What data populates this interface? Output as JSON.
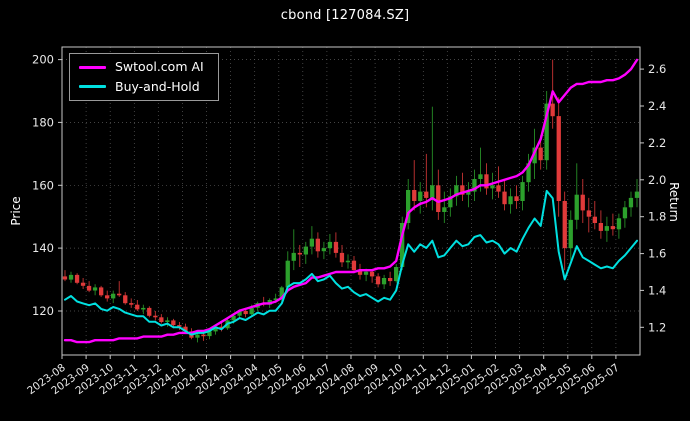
{
  "chart_data": {
    "type": "candlestick+line",
    "title": "cbond [127084.SZ]",
    "xlabel": "",
    "ylabel": "Price",
    "y2label": "Return",
    "ylim": [
      106,
      204
    ],
    "y2lim": [
      1.05,
      2.72
    ],
    "price_ticks": [
      120,
      140,
      160,
      180,
      200
    ],
    "return_ticks": [
      1.2,
      1.4,
      1.6,
      1.8,
      2.0,
      2.2,
      2.4,
      2.6
    ],
    "categories": [
      "2023-08",
      "2023-09",
      "2023-10",
      "2023-11",
      "2023-12",
      "2024-01",
      "2024-02",
      "2024-03",
      "2024-04",
      "2024-05",
      "2024-06",
      "2024-07",
      "2024-08",
      "2024-09",
      "2024-10",
      "2024-11",
      "2024-12",
      "2025-01",
      "2025-02",
      "2025-03",
      "2025-04",
      "2025-05",
      "2025-06",
      "2025-07"
    ],
    "candles_per_month": 4,
    "grid": true,
    "legend_position": "upper-left",
    "candles": [
      [
        131,
        133,
        129.5,
        130
      ],
      [
        130,
        132.5,
        129,
        131.5
      ],
      [
        131.5,
        132,
        128.5,
        129
      ],
      [
        129,
        130.5,
        127,
        128
      ],
      [
        128,
        129.5,
        126,
        126.5
      ],
      [
        126.5,
        128.5,
        125,
        127.5
      ],
      [
        127.5,
        128,
        124.5,
        125
      ],
      [
        125,
        126.5,
        123,
        124
      ],
      [
        124,
        126.5,
        122.5,
        125.5
      ],
      [
        125.5,
        129.5,
        124.5,
        125
      ],
      [
        125,
        126,
        122,
        122.5
      ],
      [
        122.5,
        124,
        121,
        122
      ],
      [
        122,
        123.5,
        120,
        120.5
      ],
      [
        120.5,
        122,
        119,
        121
      ],
      [
        121,
        121.5,
        118,
        118.5
      ],
      [
        118.5,
        120,
        117,
        118
      ],
      [
        118,
        119,
        116,
        116.5
      ],
      [
        116.5,
        118,
        115,
        117
      ],
      [
        117,
        117.5,
        114.5,
        115.5
      ],
      [
        115.5,
        116.5,
        114,
        115
      ],
      [
        115,
        116,
        113,
        113.5
      ],
      [
        113.5,
        114.5,
        111,
        111.5
      ],
      [
        111.5,
        113,
        110,
        112.5
      ],
      [
        112.5,
        113.5,
        110.5,
        112
      ],
      [
        112,
        114,
        111,
        113.5
      ],
      [
        113.5,
        115.5,
        112.5,
        115
      ],
      [
        115,
        116.5,
        113.5,
        114.5
      ],
      [
        114.5,
        117.5,
        114,
        117
      ],
      [
        117,
        119,
        116,
        118.5
      ],
      [
        118.5,
        120.5,
        117.5,
        120
      ],
      [
        120,
        121,
        118,
        119
      ],
      [
        119,
        122,
        118.5,
        121
      ],
      [
        121,
        123,
        120,
        122.5
      ],
      [
        122.5,
        124.5,
        121.5,
        122
      ],
      [
        122,
        124,
        121,
        123.5
      ],
      [
        123.5,
        125.5,
        122.5,
        124
      ],
      [
        124,
        128,
        123,
        127.5
      ],
      [
        127.5,
        139,
        126.5,
        136
      ],
      [
        136,
        146,
        133,
        138.5
      ],
      [
        138.5,
        141,
        134,
        138
      ],
      [
        138,
        142,
        135,
        140.5
      ],
      [
        140.5,
        147,
        138,
        143
      ],
      [
        143,
        145,
        137,
        139
      ],
      [
        139,
        142,
        136.5,
        140
      ],
      [
        140,
        144.5,
        138,
        142
      ],
      [
        142,
        145,
        137,
        138.5
      ],
      [
        138.5,
        141,
        134,
        135.5
      ],
      [
        135.5,
        138,
        133.5,
        136
      ],
      [
        136,
        137.5,
        132,
        133
      ],
      [
        133,
        135,
        130,
        131.5
      ],
      [
        131.5,
        133.5,
        129.5,
        132.5
      ],
      [
        132.5,
        133,
        129,
        131
      ],
      [
        131,
        132,
        127.5,
        128.5
      ],
      [
        128.5,
        131.5,
        127,
        130.5
      ],
      [
        130.5,
        132.5,
        128,
        129.5
      ],
      [
        129.5,
        135,
        129,
        134
      ],
      [
        134,
        150,
        133,
        148
      ],
      [
        148,
        162,
        146,
        158.5
      ],
      [
        158.5,
        168,
        152,
        155
      ],
      [
        155,
        161,
        151,
        158
      ],
      [
        158,
        170,
        153,
        156
      ],
      [
        156,
        185,
        152,
        160
      ],
      [
        160,
        165,
        149,
        151.5
      ],
      [
        151.5,
        158,
        148,
        153
      ],
      [
        153,
        159,
        150,
        156.5
      ],
      [
        156.5,
        163,
        153.5,
        160
      ],
      [
        160,
        164,
        155,
        157
      ],
      [
        157,
        161,
        153,
        158
      ],
      [
        158,
        165,
        155,
        162
      ],
      [
        162,
        172,
        158,
        163.5
      ],
      [
        163.5,
        167,
        157,
        159
      ],
      [
        159,
        164,
        155.5,
        160
      ],
      [
        160,
        166,
        156,
        158
      ],
      [
        158,
        162,
        152,
        154
      ],
      [
        154,
        159,
        151,
        156.5
      ],
      [
        156.5,
        160,
        152.5,
        155
      ],
      [
        155,
        163,
        152,
        161
      ],
      [
        161,
        170,
        158,
        167
      ],
      [
        167,
        178,
        162,
        172
      ],
      [
        172,
        176,
        165,
        168
      ],
      [
        168,
        190,
        165,
        186
      ],
      [
        186,
        200,
        178,
        182
      ],
      [
        182,
        188,
        150,
        155
      ],
      [
        155,
        158,
        133,
        140
      ],
      [
        140,
        152,
        136,
        149
      ],
      [
        149,
        167,
        146,
        157
      ],
      [
        157,
        162,
        148,
        152
      ],
      [
        152,
        156,
        145,
        150
      ],
      [
        150,
        155,
        146,
        148
      ],
      [
        148,
        152,
        143,
        145.5
      ],
      [
        145.5,
        150,
        142,
        147
      ],
      [
        147,
        151,
        144,
        146
      ],
      [
        146,
        151,
        143,
        149.5
      ],
      [
        149.5,
        155,
        146.5,
        153
      ],
      [
        153,
        158,
        150,
        156
      ],
      [
        156,
        162,
        153,
        158
      ]
    ],
    "series": [
      {
        "id": "ai",
        "name": "Swtool.com AI",
        "axis": "right",
        "color": "#ff00ff",
        "width": 2.4,
        "values": [
          1.13,
          1.13,
          1.12,
          1.12,
          1.12,
          1.13,
          1.13,
          1.13,
          1.13,
          1.14,
          1.14,
          1.14,
          1.14,
          1.15,
          1.15,
          1.15,
          1.15,
          1.16,
          1.16,
          1.17,
          1.17,
          1.17,
          1.18,
          1.18,
          1.19,
          1.21,
          1.23,
          1.25,
          1.27,
          1.29,
          1.3,
          1.31,
          1.32,
          1.33,
          1.33,
          1.34,
          1.36,
          1.4,
          1.42,
          1.43,
          1.44,
          1.47,
          1.47,
          1.48,
          1.49,
          1.5,
          1.5,
          1.5,
          1.5,
          1.51,
          1.51,
          1.51,
          1.52,
          1.52,
          1.53,
          1.56,
          1.7,
          1.82,
          1.85,
          1.87,
          1.88,
          1.9,
          1.88,
          1.89,
          1.9,
          1.92,
          1.93,
          1.94,
          1.95,
          1.97,
          1.97,
          1.98,
          1.99,
          2.0,
          2.01,
          2.02,
          2.04,
          2.08,
          2.15,
          2.22,
          2.35,
          2.48,
          2.42,
          2.46,
          2.5,
          2.52,
          2.52,
          2.53,
          2.53,
          2.53,
          2.54,
          2.54,
          2.55,
          2.57,
          2.6,
          2.65
        ]
      },
      {
        "id": "bh",
        "name": "Buy-and-Hold",
        "axis": "right",
        "color": "#00e0e0",
        "width": 2,
        "values": [
          1.35,
          1.37,
          1.34,
          1.33,
          1.32,
          1.33,
          1.3,
          1.29,
          1.31,
          1.3,
          1.28,
          1.27,
          1.26,
          1.26,
          1.23,
          1.23,
          1.21,
          1.22,
          1.2,
          1.2,
          1.18,
          1.16,
          1.17,
          1.17,
          1.18,
          1.2,
          1.19,
          1.22,
          1.23,
          1.25,
          1.24,
          1.26,
          1.28,
          1.27,
          1.29,
          1.29,
          1.33,
          1.42,
          1.44,
          1.44,
          1.46,
          1.49,
          1.45,
          1.46,
          1.48,
          1.44,
          1.41,
          1.42,
          1.39,
          1.37,
          1.38,
          1.36,
          1.34,
          1.36,
          1.35,
          1.4,
          1.54,
          1.65,
          1.61,
          1.65,
          1.63,
          1.67,
          1.58,
          1.59,
          1.63,
          1.67,
          1.64,
          1.65,
          1.69,
          1.7,
          1.66,
          1.67,
          1.65,
          1.6,
          1.63,
          1.61,
          1.68,
          1.74,
          1.79,
          1.75,
          1.94,
          1.9,
          1.61,
          1.46,
          1.55,
          1.64,
          1.58,
          1.56,
          1.54,
          1.52,
          1.53,
          1.52,
          1.56,
          1.59,
          1.63,
          1.67
        ]
      }
    ],
    "colors": {
      "up": "#2ca02c",
      "down": "#e03a3a",
      "grid": "#5a5a5a",
      "spine": "#c8c8c8",
      "bg": "#000000",
      "text": "#e8e8e8"
    }
  }
}
